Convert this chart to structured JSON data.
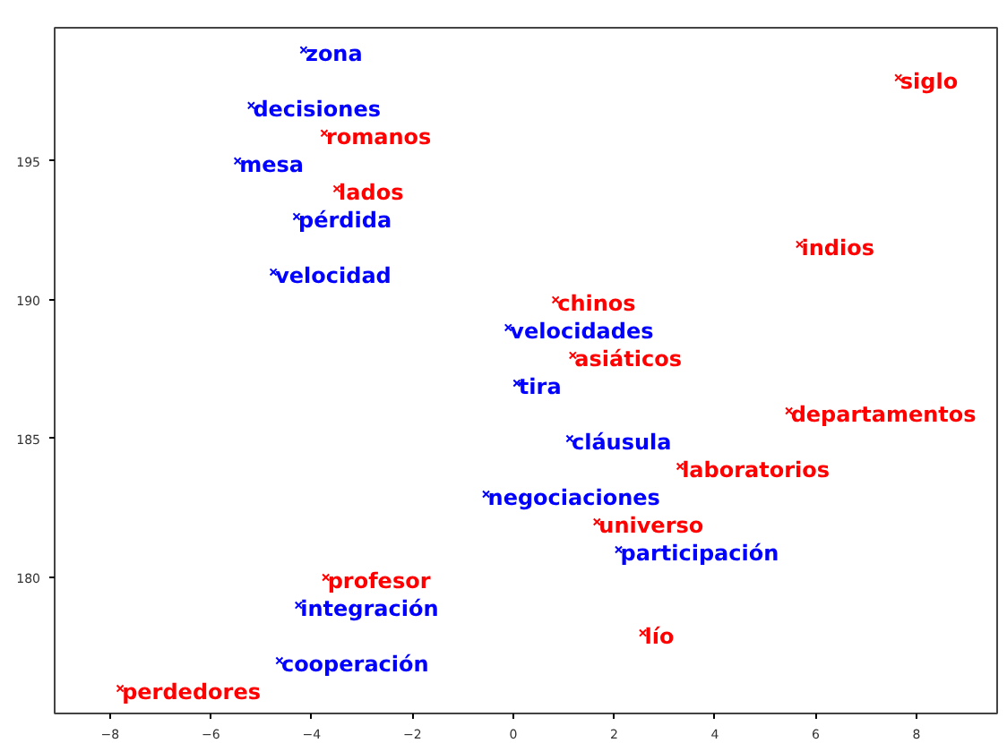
{
  "chart_data": {
    "type": "scatter",
    "marker": "cross",
    "data_labels": true,
    "grid": false,
    "xlim": [
      -9.1,
      9.6
    ],
    "ylim": [
      175.1,
      199.8
    ],
    "xticks": [
      {
        "value": -8,
        "label": "−8"
      },
      {
        "value": -6,
        "label": "−6"
      },
      {
        "value": -4,
        "label": "−4"
      },
      {
        "value": -2,
        "label": "−2"
      },
      0,
      2,
      4,
      6,
      8
    ],
    "yticks": [
      180,
      185,
      190,
      195
    ],
    "series": [
      {
        "color": "#0000ff",
        "x": [
          -4.16,
          -5.2,
          -5.47,
          -4.3,
          -4.76,
          -0.1,
          0.07,
          1.12,
          -0.54,
          2.09,
          -4.26,
          -4.64
        ],
        "values": [
          199,
          197,
          195,
          193,
          191,
          189,
          187,
          185,
          183,
          181,
          179,
          177
        ],
        "value_labels": [
          "zona",
          "decisiones",
          "mesa",
          "pérdida",
          "velocidad",
          "velocidades",
          "tira",
          "cláusula",
          "negociaciones",
          "participación",
          "integración",
          "cooperación"
        ]
      },
      {
        "color": "#ff0000",
        "x": [
          7.64,
          -3.75,
          -3.5,
          5.68,
          0.84,
          1.18,
          5.47,
          3.31,
          1.66,
          -3.72,
          2.57,
          -7.8
        ],
        "values": [
          198,
          196,
          194,
          192,
          190,
          188,
          186,
          184,
          182,
          180,
          178,
          176
        ],
        "value_labels": [
          "siglo",
          "romanos",
          "lados",
          "indios",
          "chinos",
          "asiáticos",
          "departamentos",
          "laboratorios",
          "universo",
          "profesor",
          "lío",
          "perdedores"
        ]
      }
    ]
  }
}
